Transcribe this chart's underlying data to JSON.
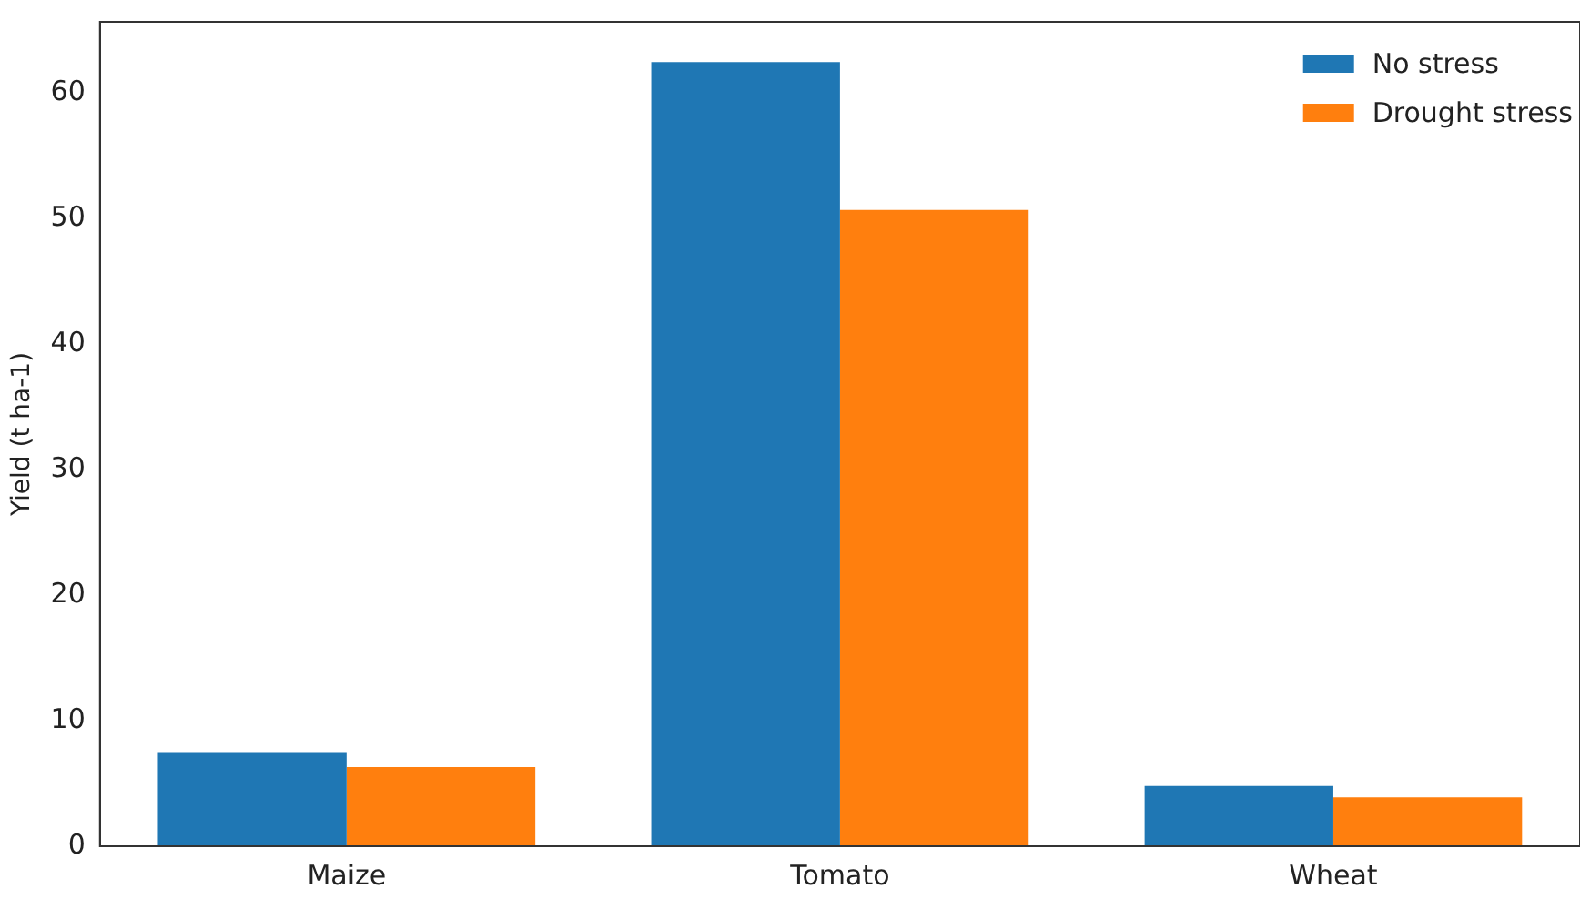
{
  "chart_data": {
    "type": "bar",
    "ylabel": "Yield (t ha-1)",
    "categories": [
      "Maize",
      "Tomato",
      "Wheat"
    ],
    "series": [
      {
        "name": "No stress",
        "color": "#1f77b4",
        "values": [
          7.5,
          62.5,
          4.8
        ]
      },
      {
        "name": "Drought stress",
        "color": "#ff7f0e",
        "values": [
          6.3,
          50.7,
          3.9
        ]
      }
    ],
    "ylim": [
      0,
      65.7
    ],
    "yticks": [
      0,
      10,
      20,
      30,
      40,
      50,
      60
    ],
    "grid": false,
    "legend": "top right"
  }
}
